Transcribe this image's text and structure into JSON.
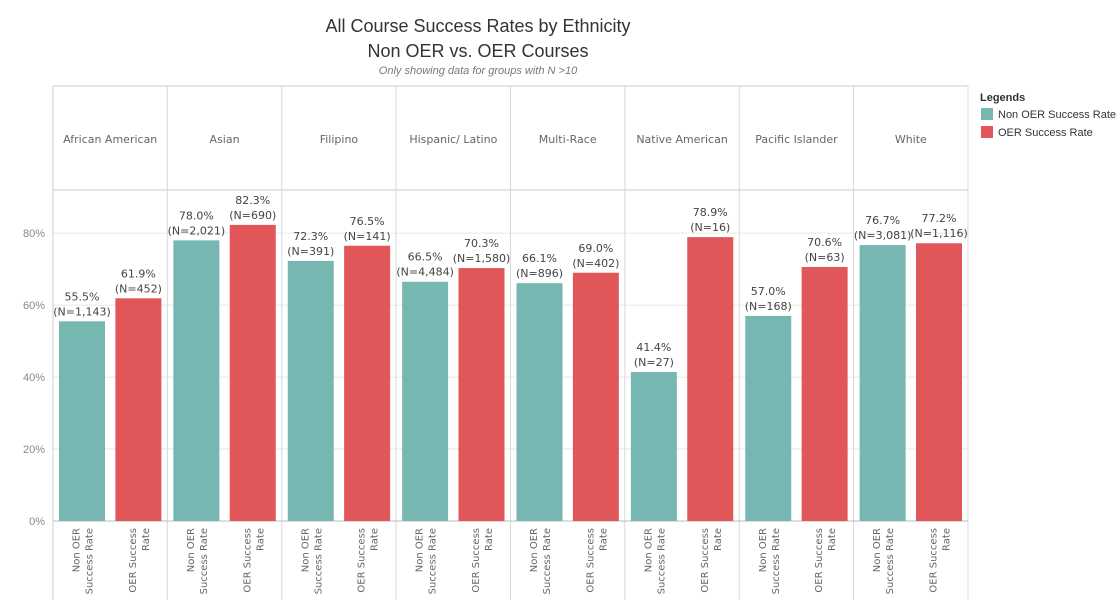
{
  "chart_data": {
    "type": "bar",
    "title": "All Course Success Rates by Ethnicity",
    "subtitle": "Non OER vs. OER Courses",
    "note": "Only showing data for groups with N >10",
    "categories": [
      "African American",
      "Asian",
      "Filipino",
      "Hispanic/ Latino",
      "Multi-Race",
      "Native American",
      "Pacific Islander",
      "White"
    ],
    "series": [
      {
        "name": "Non OER Success Rate",
        "axis_label_lines": [
          "Non OER",
          "Success Rate"
        ],
        "color": "#76b7b2",
        "values": [
          55.5,
          78.0,
          72.3,
          66.5,
          66.1,
          41.4,
          57.0,
          76.7
        ],
        "value_labels": [
          "55.5%",
          "78.0%",
          "72.3%",
          "66.5%",
          "66.1%",
          "41.4%",
          "57.0%",
          "76.7%"
        ],
        "n_labels": [
          "(N=1,143)",
          "(N=2,021)",
          "(N=391)",
          "(N=4,484)",
          "(N=896)",
          "(N=27)",
          "(N=168)",
          "(N=3,081)"
        ]
      },
      {
        "name": "OER Success Rate",
        "axis_label_lines": [
          "OER Success",
          "Rate"
        ],
        "color": "#e15759",
        "values": [
          61.9,
          82.3,
          76.5,
          70.3,
          69.0,
          78.9,
          70.6,
          77.2
        ],
        "value_labels": [
          "61.9%",
          "82.3%",
          "76.5%",
          "70.3%",
          "69.0%",
          "78.9%",
          "70.6%",
          "77.2%"
        ],
        "n_labels": [
          "(N=452)",
          "(N=690)",
          "(N=141)",
          "(N=1,580)",
          "(N=402)",
          "(N=16)",
          "(N=63)",
          "(N=1,116)"
        ]
      }
    ],
    "yticks": [
      0,
      20,
      40,
      60,
      80
    ],
    "ytick_labels": [
      "0%",
      "20%",
      "40%",
      "60%",
      "80%"
    ],
    "ylim": [
      0,
      92
    ],
    "legend": {
      "title": "Legends",
      "position": "right"
    },
    "grid": true
  }
}
